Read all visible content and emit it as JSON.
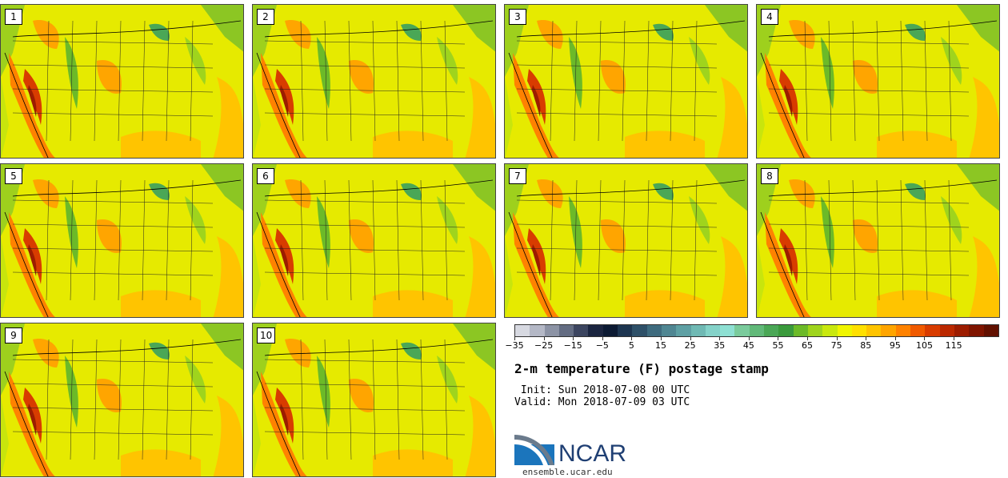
{
  "panels": [
    "1",
    "2",
    "3",
    "4",
    "5",
    "6",
    "7",
    "8",
    "9",
    "10"
  ],
  "colorbar": {
    "colors": [
      "#d7d9e1",
      "#b4b8c6",
      "#8c93a5",
      "#636c82",
      "#3c4560",
      "#1b2540",
      "#0c1a33",
      "#1d3550",
      "#2e5068",
      "#3e6b7e",
      "#4f8692",
      "#5ea0a4",
      "#6fb9b4",
      "#84d2c9",
      "#8ee0d3",
      "#7acb9c",
      "#61b979",
      "#4aa756",
      "#3a9a3c",
      "#6cba28",
      "#9fd41d",
      "#c9e80e",
      "#f0f500",
      "#ffe000",
      "#ffc400",
      "#ffa500",
      "#ff8200",
      "#f05a00",
      "#d83c00",
      "#bb2800",
      "#9c1c00",
      "#7f1400",
      "#611000"
    ],
    "tick_labels": [
      "−35",
      "−25",
      "−15",
      "−5",
      "5",
      "15",
      "25",
      "35",
      "45",
      "55",
      "65",
      "75",
      "85",
      "95",
      "105",
      "115"
    ],
    "min": -35,
    "max": 130,
    "tick_step": 10
  },
  "title": "2-m temperature (F) postage stamp",
  "init": " Init: Sun 2018-07-08 00 UTC",
  "valid": "Valid: Mon 2018-07-09 03 UTC",
  "logo": {
    "name": "NCAR",
    "site": "ensemble.ucar.edu"
  }
}
